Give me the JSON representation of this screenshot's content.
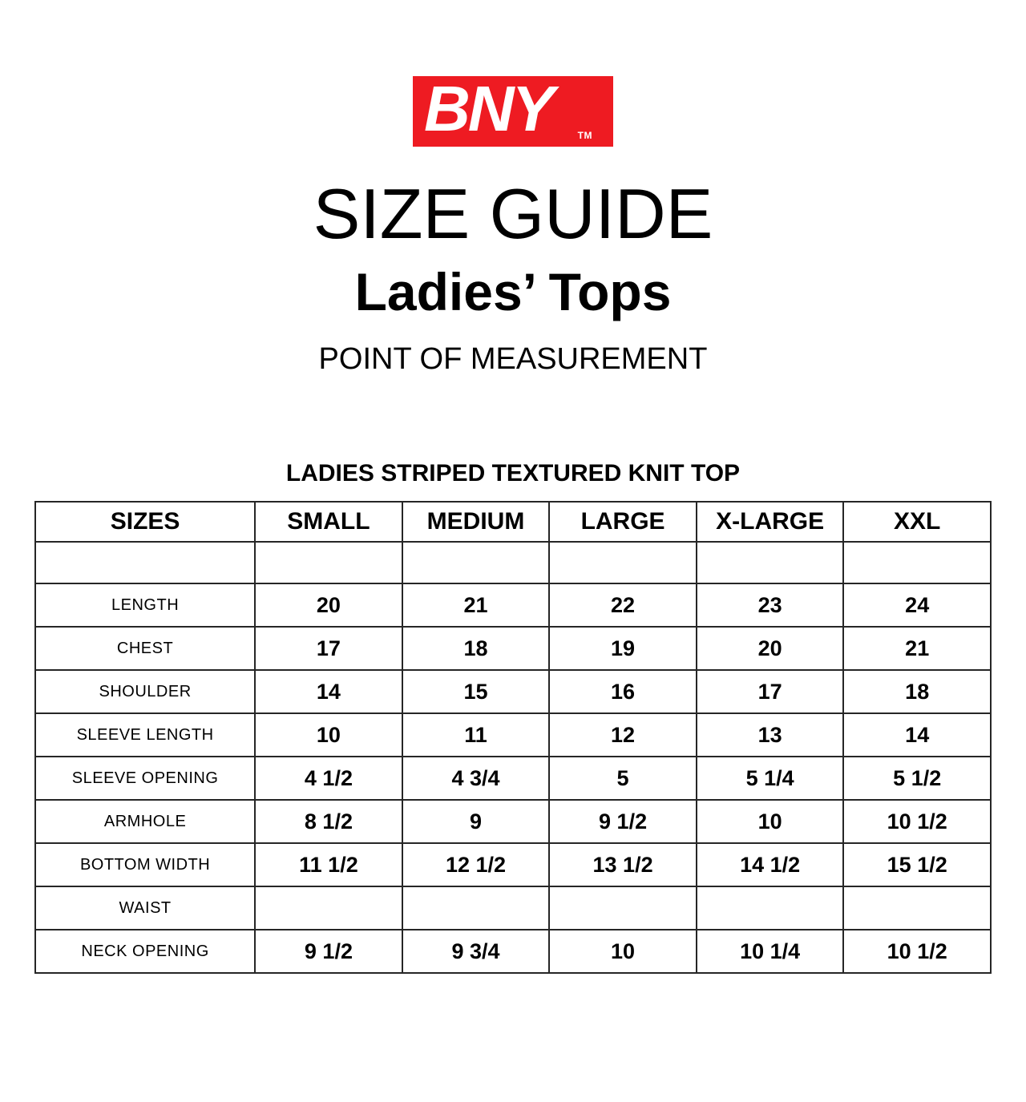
{
  "logo": {
    "text": "BNY",
    "trademark": "TM",
    "bg_color": "#ee1b22",
    "text_color": "#ffffff"
  },
  "header": {
    "title": "SIZE GUIDE",
    "subtitle": "Ladies’ Tops",
    "section_label": "POINT OF MEASUREMENT"
  },
  "table": {
    "caption": "LADIES STRIPED TEXTURED KNIT TOP",
    "columns": [
      "SIZES",
      "SMALL",
      "MEDIUM",
      "LARGE",
      "X-LARGE",
      "XXL"
    ],
    "rows": [
      {
        "label": "",
        "values": [
          "",
          "",
          "",
          "",
          ""
        ]
      },
      {
        "label": "LENGTH",
        "values": [
          "20",
          "21",
          "22",
          "23",
          "24"
        ]
      },
      {
        "label": "CHEST",
        "values": [
          "17",
          "18",
          "19",
          "20",
          "21"
        ]
      },
      {
        "label": "SHOULDER",
        "values": [
          "14",
          "15",
          "16",
          "17",
          "18"
        ]
      },
      {
        "label": "SLEEVE LENGTH",
        "values": [
          "10",
          "11",
          "12",
          "13",
          "14"
        ]
      },
      {
        "label": "SLEEVE OPENING",
        "values": [
          "4 1/2",
          "4 3/4",
          "5",
          "5 1/4",
          "5 1/2"
        ]
      },
      {
        "label": "ARMHOLE",
        "values": [
          "8 1/2",
          "9",
          "9 1/2",
          "10",
          "10 1/2"
        ]
      },
      {
        "label": "BOTTOM WIDTH",
        "values": [
          "11 1/2",
          "12 1/2",
          "13 1/2",
          "14 1/2",
          "15 1/2"
        ]
      },
      {
        "label": "WAIST",
        "values": [
          "",
          "",
          "",
          "",
          ""
        ]
      },
      {
        "label": "NECK OPENING",
        "values": [
          "9 1/2",
          "9 3/4",
          "10",
          "10 1/4",
          "10 1/2"
        ]
      }
    ]
  }
}
